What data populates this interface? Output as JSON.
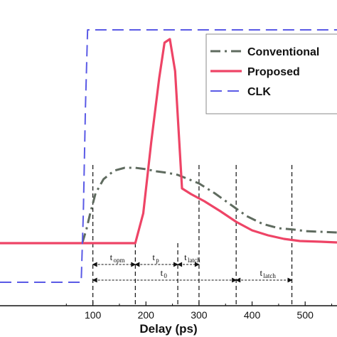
{
  "chart_data": {
    "type": "line",
    "xlabel": "Delay (ps)",
    "ylabel": "",
    "title": "",
    "xlim": [
      -75,
      560
    ],
    "x_ticks": [
      100,
      200,
      300,
      400,
      500
    ],
    "grid": false,
    "legend": {
      "placement": "top-right",
      "entries": [
        "Conventional",
        "Proposed",
        "CLK"
      ]
    },
    "series": [
      {
        "name": "Conventional",
        "color": "#5f6b5f",
        "style": "dash-dot",
        "points": [
          [
            -75,
            342
          ],
          [
            80,
            342
          ],
          [
            88,
            322
          ],
          [
            95,
            300
          ],
          [
            105,
            272
          ],
          [
            120,
            252
          ],
          [
            140,
            240
          ],
          [
            160,
            236
          ],
          [
            180,
            236
          ],
          [
            200,
            238
          ],
          [
            220,
            241
          ],
          [
            240,
            243
          ],
          [
            260,
            246
          ],
          [
            280,
            252
          ],
          [
            300,
            258
          ],
          [
            330,
            272
          ],
          [
            360,
            288
          ],
          [
            390,
            304
          ],
          [
            420,
            315
          ],
          [
            450,
            321
          ],
          [
            480,
            323
          ],
          [
            500,
            325
          ],
          [
            530,
            326
          ],
          [
            560,
            327
          ]
        ]
      },
      {
        "name": "Proposed",
        "color": "#ee4466",
        "style": "solid",
        "points": [
          [
            -75,
            342
          ],
          [
            180,
            342
          ],
          [
            195,
            300
          ],
          [
            210,
            200
          ],
          [
            225,
            110
          ],
          [
            235,
            60
          ],
          [
            245,
            55
          ],
          [
            255,
            100
          ],
          [
            262,
            190
          ],
          [
            268,
            265
          ],
          [
            285,
            273
          ],
          [
            310,
            283
          ],
          [
            340,
            297
          ],
          [
            370,
            312
          ],
          [
            400,
            324
          ],
          [
            430,
            331
          ],
          [
            460,
            336
          ],
          [
            490,
            339
          ],
          [
            530,
            340
          ],
          [
            560,
            341
          ]
        ]
      },
      {
        "name": "CLK",
        "color": "#5a5ae6",
        "style": "long-dash",
        "points": [
          [
            -75,
            397
          ],
          [
            78,
            397
          ],
          [
            82,
            300
          ],
          [
            86,
            150
          ],
          [
            90,
            42
          ],
          [
            560,
            42
          ]
        ]
      }
    ],
    "markers": {
      "vertical_lines_x": [
        100,
        180,
        260,
        300,
        370,
        475
      ],
      "intervals": [
        {
          "label": "t",
          "sub": "opm",
          "from": 100,
          "to": 180,
          "row": "upper"
        },
        {
          "label": "t",
          "sub": "p",
          "from": 180,
          "to": 260,
          "row": "upper"
        },
        {
          "label": "t",
          "sub": "latch",
          "from": 260,
          "to": 300,
          "row": "upper"
        },
        {
          "label": "t",
          "sub": "0",
          "from": 100,
          "to": 370,
          "row": "lower"
        },
        {
          "label": "t",
          "sub": "latch",
          "from": 370,
          "to": 475,
          "row": "lower"
        }
      ]
    }
  }
}
